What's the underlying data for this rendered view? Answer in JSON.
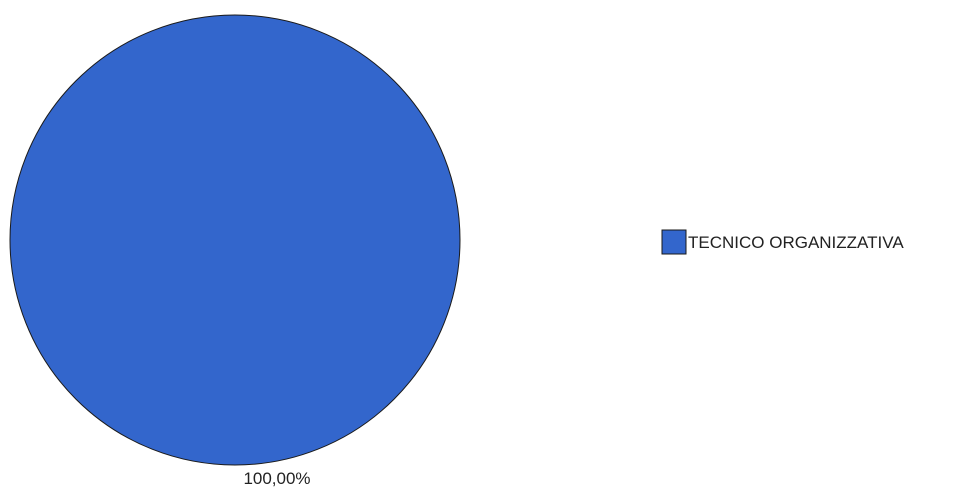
{
  "chart_data": {
    "type": "pie",
    "title": "",
    "slices": [
      {
        "label": "TECNICO ORGANIZZATIVA",
        "value": 100,
        "value_label": "100,00%",
        "color": "#3366CC"
      }
    ],
    "legend": {
      "placement": "right"
    },
    "outline_color": "#1a1a1a"
  }
}
